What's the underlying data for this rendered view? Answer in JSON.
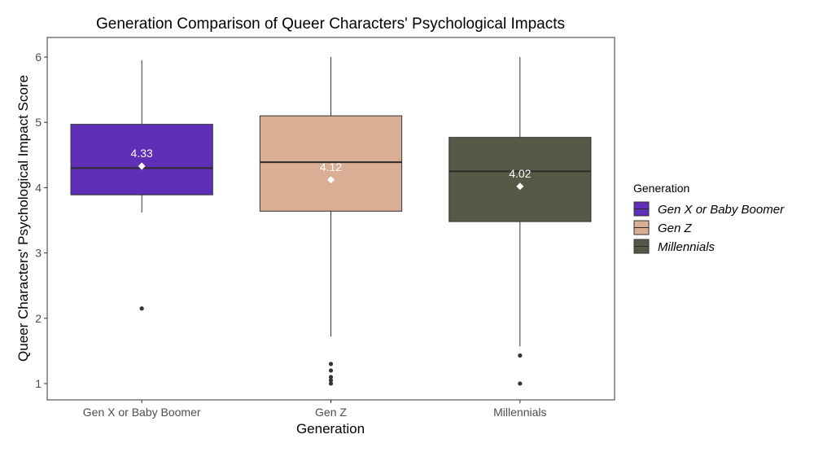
{
  "chart_data": {
    "type": "boxplot",
    "title": "Generation Comparison of Queer Characters' Psychological Impacts",
    "xlabel": "Generation",
    "ylabel": "Queer Characters' Psychological Impact Score",
    "ylim": [
      0.75,
      6.3
    ],
    "yticks": [
      1,
      2,
      3,
      4,
      5,
      6
    ],
    "categories": [
      "Gen X or Baby Boomer",
      "Gen Z",
      "Millennials"
    ],
    "legend": {
      "title": "Generation",
      "placement": "right",
      "entries": [
        "Gen X or Baby Boomer",
        "Gen Z",
        "Millennials"
      ]
    },
    "series": [
      {
        "category": "Gen X or Baby Boomer",
        "color": "#5f2fb8",
        "whisker_low": 3.62,
        "q1": 3.89,
        "median": 4.3,
        "q3": 4.97,
        "whisker_high": 5.95,
        "mean": 4.33,
        "mean_label": "4.33",
        "outliers": [
          2.15
        ]
      },
      {
        "category": "Gen Z",
        "color": "#d9ae94",
        "whisker_low": 1.72,
        "q1": 3.64,
        "median": 4.39,
        "q3": 5.1,
        "whisker_high": 6.0,
        "mean": 4.12,
        "mean_label": "4.12",
        "outliers": [
          1.0,
          1.05,
          1.1,
          1.2,
          1.3
        ]
      },
      {
        "category": "Millennials",
        "color": "#555a47",
        "whisker_low": 1.57,
        "q1": 3.48,
        "median": 4.25,
        "q3": 4.77,
        "whisker_high": 6.0,
        "mean": 4.02,
        "mean_label": "4.02",
        "outliers": [
          1.0,
          1.43
        ]
      }
    ],
    "grid": false,
    "panel_border": true
  }
}
